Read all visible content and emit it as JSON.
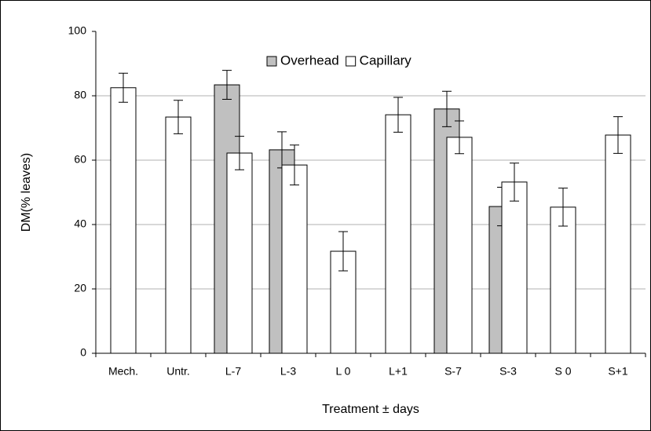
{
  "chart_data": {
    "type": "bar",
    "y_label": "DM(% leaves)",
    "x_label": "Treatment ± days",
    "categories": [
      "Mech.",
      "Untr.",
      "L-7",
      "L-3",
      "L 0",
      "L+1",
      "S-7",
      "S-3",
      "S 0",
      "S+1"
    ],
    "series": [
      {
        "name": "Overhead",
        "color": "#c0c0c0",
        "values": [
          null,
          null,
          83.4,
          63.2,
          null,
          null,
          75.9,
          45.6,
          null,
          null
        ],
        "errors": [
          null,
          null,
          4.5,
          5.6,
          null,
          null,
          5.5,
          6.0,
          null,
          null
        ]
      },
      {
        "name": "Capillary",
        "color": "#ffffff",
        "values": [
          82.5,
          73.4,
          62.2,
          58.5,
          31.7,
          74.1,
          67.1,
          53.2,
          45.4,
          67.8
        ],
        "errors": [
          4.5,
          5.2,
          5.2,
          6.2,
          6.1,
          5.4,
          5.1,
          5.9,
          5.9,
          5.7
        ]
      }
    ],
    "ylim": [
      0,
      100
    ],
    "yticks": [
      0,
      20,
      40,
      60,
      80,
      100
    ],
    "grid": true,
    "legend": "top"
  }
}
